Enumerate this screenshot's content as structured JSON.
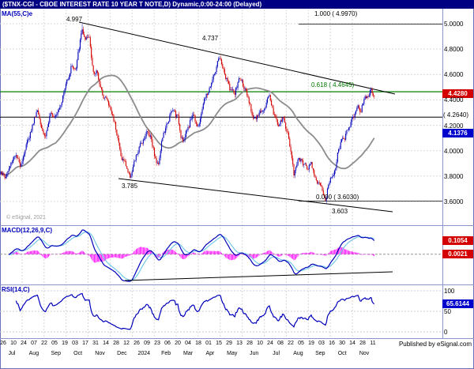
{
  "window": {
    "title": "($TNX-CGI - CBOE INTEREST RATE 10 YEAR T NOTE,D) Dynamic,0:00-24:00 (Delayed)"
  },
  "price_panel": {
    "indicator_label": "MA(55,C)e",
    "watermark": "© eSignal, 2021",
    "y_axis_labels": [
      "5.0000",
      "4.8000",
      "4.6000",
      "4.4000",
      "4.2000",
      "4.0000",
      "3.8000",
      "3.6000"
    ],
    "annotations": {
      "high_label": "4.997",
      "fib_100": "1.000 ( 4.9970)",
      "swing_high_label": "4.737",
      "fib_618": "0.618 ( 4.4645)",
      "retrace_level": "( 4.2640)",
      "swing_low_label": "3.785",
      "fib_0": "0.000 ( 3.6030)",
      "low_label": "3.603"
    },
    "badges": {
      "last_price": "4.4280",
      "ma_value": "4.1376"
    }
  },
  "macd_panel": {
    "label": "MACD(12,26,9,C)",
    "badges": [
      "0.1054",
      "0.0021"
    ]
  },
  "rsi_panel": {
    "label": "RSI(14,C)",
    "badge": "65.6144",
    "scale_labels": [
      "100",
      "50",
      "0"
    ]
  },
  "x_axis": {
    "day_labels": [
      "26",
      "10",
      "24",
      "07",
      "22",
      "05",
      "19",
      "03",
      "17",
      "31",
      "14",
      "28",
      "12",
      "26",
      "09",
      "23",
      "06",
      "20",
      "04",
      "18",
      "01",
      "15",
      "29",
      "13",
      "28",
      "10",
      "24",
      "08",
      "22",
      "05",
      "19",
      "03",
      "16",
      "30",
      "14",
      "28",
      "11"
    ],
    "month_labels": [
      "Jul",
      "Aug",
      "Sep",
      "Oct",
      "Nov",
      "Dec",
      "2024",
      "Feb",
      "Mar",
      "Apr",
      "May",
      "Jun",
      "Jul",
      "Aug",
      "Sep",
      "Oct",
      "Nov"
    ]
  },
  "footer": {
    "published": "Published by eSignal.com"
  },
  "colors": {
    "titlebar": "#000082",
    "up": "#0000bb",
    "down": "#d40000",
    "ma_line": "#8c8c8c",
    "macd_line": "#0000bb",
    "macd_signal": "#74c8e6",
    "histogram": "#ff00ff",
    "rsi_line": "#0000bb",
    "fib_618_line": "#008000",
    "badge_red": "#d40000",
    "badge_blue": "#0000cc"
  },
  "chart_data": {
    "type": "candlestick",
    "symbol": "$TNX-CGI",
    "name": "CBOE INTEREST RATE 10 YEAR T NOTE",
    "interval": "D",
    "session": "0:00-24:00 (Delayed)",
    "bars": 368,
    "last_close": 4.428,
    "ma55_last": 4.1376,
    "macd_last": 0.1054,
    "macd_signal_last": 0.0021,
    "rsi_last": 65.6144,
    "y_ticks": [
      5.0,
      4.8,
      4.6,
      4.4,
      4.2,
      4.0,
      3.8,
      3.6
    ],
    "levels": {
      "fib_1000": 4.997,
      "fib_0618": 4.4645,
      "retrace": 4.264,
      "fib_0000": 3.603,
      "swing_high": 4.737,
      "swing_low": 3.785
    },
    "indicators": [
      {
        "name": "MA",
        "period": 55
      },
      {
        "name": "MACD",
        "params": [
          12,
          26,
          9
        ]
      },
      {
        "name": "RSI",
        "period": 14
      }
    ],
    "price_waypoints": [
      [
        0,
        3.85
      ],
      [
        5,
        3.78
      ],
      [
        12,
        3.88
      ],
      [
        18,
        3.98
      ],
      [
        24,
        3.88
      ],
      [
        28,
        3.96
      ],
      [
        34,
        4.08
      ],
      [
        40,
        4.2
      ],
      [
        46,
        4.33
      ],
      [
        52,
        4.2
      ],
      [
        56,
        4.11
      ],
      [
        62,
        4.26
      ],
      [
        68,
        4.29
      ],
      [
        74,
        4.35
      ],
      [
        80,
        4.46
      ],
      [
        84,
        4.56
      ],
      [
        90,
        4.68
      ],
      [
        95,
        4.63
      ],
      [
        99,
        4.8
      ],
      [
        103,
        4.96
      ],
      [
        107,
        4.85
      ],
      [
        112,
        4.89
      ],
      [
        115,
        4.74
      ],
      [
        118,
        4.58
      ],
      [
        122,
        4.64
      ],
      [
        127,
        4.46
      ],
      [
        133,
        4.42
      ],
      [
        140,
        4.3
      ],
      [
        144,
        4.23
      ],
      [
        148,
        4.12
      ],
      [
        152,
        3.95
      ],
      [
        156,
        3.92
      ],
      [
        160,
        3.86
      ],
      [
        163,
        3.79
      ],
      [
        168,
        3.88
      ],
      [
        172,
        3.96
      ],
      [
        178,
        4.06
      ],
      [
        184,
        4.15
      ],
      [
        190,
        4.12
      ],
      [
        196,
        3.93
      ],
      [
        199,
        3.88
      ],
      [
        204,
        4.1
      ],
      [
        209,
        4.17
      ],
      [
        214,
        4.28
      ],
      [
        219,
        4.31
      ],
      [
        224,
        4.26
      ],
      [
        228,
        4.13
      ],
      [
        232,
        4.09
      ],
      [
        238,
        4.2
      ],
      [
        243,
        4.3
      ],
      [
        248,
        4.22
      ],
      [
        252,
        4.21
      ],
      [
        256,
        4.38
      ],
      [
        262,
        4.45
      ],
      [
        268,
        4.56
      ],
      [
        272,
        4.63
      ],
      [
        276,
        4.71
      ],
      [
        280,
        4.68
      ],
      [
        284,
        4.58
      ],
      [
        290,
        4.49
      ],
      [
        296,
        4.44
      ],
      [
        302,
        4.57
      ],
      [
        308,
        4.51
      ],
      [
        312,
        4.41
      ],
      [
        318,
        4.29
      ],
      [
        324,
        4.25
      ],
      [
        330,
        4.31
      ],
      [
        336,
        4.39
      ],
      [
        340,
        4.45
      ],
      [
        346,
        4.28
      ],
      [
        352,
        4.2
      ],
      [
        358,
        4.25
      ],
      [
        364,
        4.11
      ],
      [
        368,
        3.96
      ],
      [
        371,
        3.81
      ],
      [
        376,
        3.94
      ],
      [
        382,
        3.9
      ],
      [
        388,
        3.87
      ],
      [
        392,
        3.92
      ],
      [
        396,
        3.85
      ],
      [
        400,
        3.76
      ],
      [
        404,
        3.71
      ],
      [
        408,
        3.66
      ],
      [
        411,
        3.62
      ],
      [
        415,
        3.74
      ],
      [
        420,
        3.81
      ],
      [
        424,
        3.9
      ],
      [
        428,
        4.02
      ],
      [
        432,
        4.08
      ],
      [
        436,
        4.1
      ],
      [
        440,
        4.2
      ],
      [
        444,
        4.24
      ],
      [
        448,
        4.28
      ],
      [
        452,
        4.36
      ],
      [
        456,
        4.31
      ],
      [
        460,
        4.42
      ],
      [
        464,
        4.45
      ],
      [
        468,
        4.47
      ],
      [
        471,
        4.44
      ],
      [
        474,
        4.428
      ]
    ]
  }
}
